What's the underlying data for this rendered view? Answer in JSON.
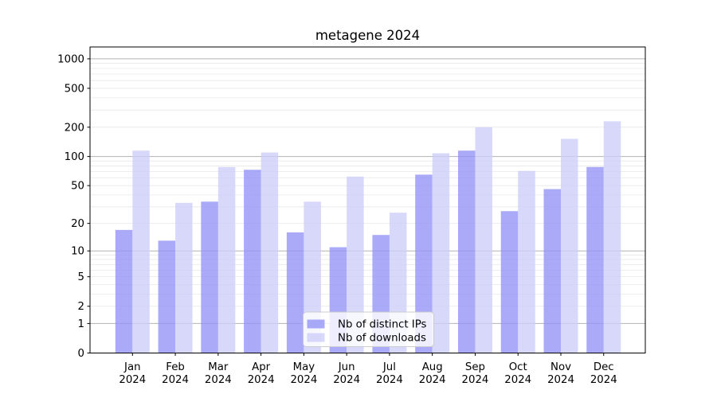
{
  "chart_data": {
    "type": "bar",
    "title": "metagene 2024",
    "yscale": "log1p",
    "categories": [
      "Jan 2024",
      "Feb 2024",
      "Mar 2024",
      "Apr 2024",
      "May 2024",
      "Jun 2024",
      "Jul 2024",
      "Aug 2024",
      "Sep 2024",
      "Oct 2024",
      "Nov 2024",
      "Dec 2024"
    ],
    "series": [
      {
        "key": "distinct-ips",
        "name": "Nb of distinct IPs",
        "color": "#9292f7",
        "fill_opacity": 0.78,
        "values": [
          17,
          13,
          34,
          73,
          16,
          11,
          15,
          65,
          115,
          27,
          46,
          78
        ]
      },
      {
        "key": "downloads",
        "name": "Nb of downloads",
        "color": "#cdcdf8",
        "fill_opacity": 0.78,
        "values": [
          115,
          33,
          78,
          110,
          34,
          62,
          26,
          108,
          200,
          71,
          152,
          230
        ]
      }
    ],
    "yticks": [
      0,
      1,
      2,
      5,
      10,
      20,
      50,
      100,
      200,
      500,
      1000
    ],
    "ylim": [
      0,
      1322
    ],
    "xlabel": "",
    "ylabel": "",
    "grid": {
      "on": true,
      "minor_color": "#e8e8e8",
      "major_color": "#b3b3b3",
      "major_lines": [
        1,
        10,
        100,
        1000
      ]
    },
    "legend": {
      "position": "lower-center",
      "labels": [
        "Nb of distinct IPs",
        "Nb of downloads"
      ]
    },
    "axis_color": "#000000"
  }
}
